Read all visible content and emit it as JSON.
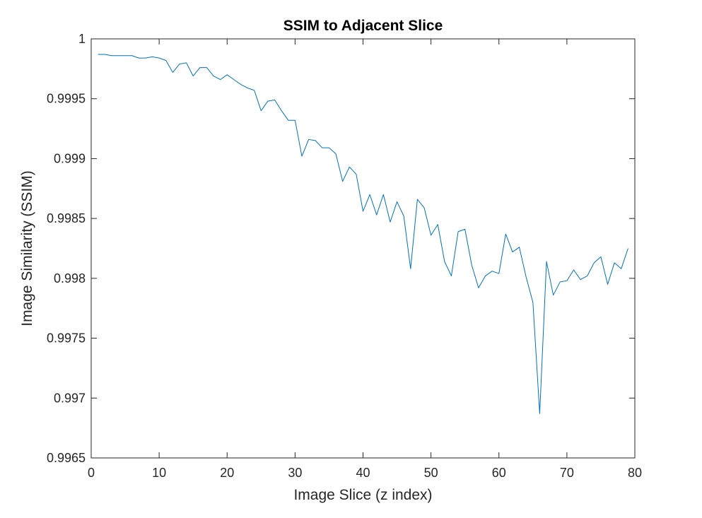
{
  "chart_data": {
    "type": "line",
    "title": "SSIM to Adjacent Slice",
    "xlabel": "Image Slice (z index)",
    "ylabel": "Image Similarity (SSIM)",
    "xlim": [
      0,
      80
    ],
    "ylim": [
      0.9965,
      1
    ],
    "xticks": [
      0,
      10,
      20,
      30,
      40,
      50,
      60,
      70,
      80
    ],
    "yticks": [
      0.9965,
      0.997,
      0.9975,
      0.998,
      0.9985,
      0.999,
      0.9995,
      1
    ],
    "xtick_labels": [
      "0",
      "10",
      "20",
      "30",
      "40",
      "50",
      "60",
      "70",
      "80"
    ],
    "ytick_labels": [
      "0.9965",
      "0.997",
      "0.9975",
      "0.998",
      "0.9985",
      "0.999",
      "0.9995",
      "1"
    ],
    "grid": false,
    "series": [
      {
        "color": "#0072BD",
        "x": [
          1,
          2,
          3,
          4,
          5,
          6,
          7,
          8,
          9,
          10,
          11,
          12,
          13,
          14,
          15,
          16,
          17,
          18,
          19,
          20,
          21,
          22,
          23,
          24,
          25,
          26,
          27,
          28,
          29,
          30,
          31,
          32,
          33,
          34,
          35,
          36,
          37,
          38,
          39,
          40,
          41,
          42,
          43,
          44,
          45,
          46,
          47,
          48,
          49,
          50,
          51,
          52,
          53,
          54,
          55,
          56,
          57,
          58,
          59,
          60,
          61,
          62,
          63,
          64,
          65,
          66,
          67,
          68,
          69,
          70,
          71,
          72,
          73,
          74,
          75,
          76,
          77,
          78,
          79
        ],
        "y": [
          0.99987,
          0.99987,
          0.99986,
          0.99986,
          0.99986,
          0.99986,
          0.99984,
          0.99984,
          0.99985,
          0.99984,
          0.99982,
          0.99972,
          0.99979,
          0.9998,
          0.99969,
          0.99976,
          0.99976,
          0.99969,
          0.99966,
          0.9997,
          0.99966,
          0.99962,
          0.99959,
          0.99957,
          0.9994,
          0.99948,
          0.99949,
          0.9994,
          0.99932,
          0.99932,
          0.99902,
          0.99916,
          0.99915,
          0.99909,
          0.99909,
          0.99904,
          0.99881,
          0.99893,
          0.99887,
          0.99856,
          0.9987,
          0.99853,
          0.9987,
          0.99847,
          0.99864,
          0.99852,
          0.99808,
          0.99866,
          0.99859,
          0.99836,
          0.99845,
          0.99814,
          0.99802,
          0.99839,
          0.99841,
          0.99811,
          0.99792,
          0.99802,
          0.99806,
          0.99804,
          0.99837,
          0.99822,
          0.99826,
          0.99801,
          0.9978,
          0.99687,
          0.99814,
          0.99786,
          0.99797,
          0.99798,
          0.99807,
          0.99799,
          0.99802,
          0.99813,
          0.99818,
          0.99795,
          0.99813,
          0.99808,
          0.99825
        ]
      }
    ]
  }
}
